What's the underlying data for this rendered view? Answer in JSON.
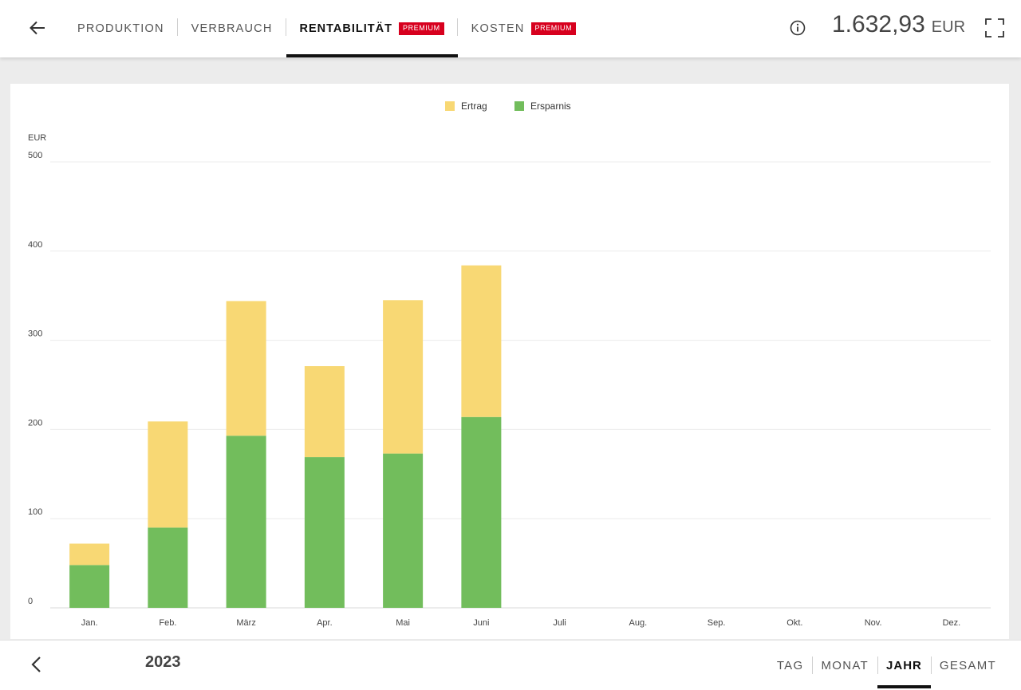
{
  "header": {
    "tabs": [
      {
        "label": "PRODUKTION",
        "active": false,
        "premium": false
      },
      {
        "label": "VERBRAUCH",
        "active": false,
        "premium": false
      },
      {
        "label": "RENTABILITÄT",
        "active": true,
        "premium": true
      },
      {
        "label": "KOSTEN",
        "active": false,
        "premium": true
      }
    ],
    "premium_badge": "PREMIUM",
    "total_value": "1.632,93",
    "total_unit": "EUR",
    "icons": {
      "back": "arrow-left-icon",
      "info": "info-icon",
      "fullscreen": "fullscreen-icon"
    }
  },
  "chart_data": {
    "type": "bar",
    "stacked": true,
    "categories": [
      "Jan.",
      "Feb.",
      "März",
      "Apr.",
      "Mai",
      "Juni",
      "Juli",
      "Aug.",
      "Sep.",
      "Okt.",
      "Nov.",
      "Dez."
    ],
    "series": [
      {
        "name": "Ersparnis",
        "color": "#72bd5c",
        "values": [
          48,
          90,
          193,
          169,
          173,
          214,
          null,
          null,
          null,
          null,
          null,
          null
        ]
      },
      {
        "name": "Ertrag",
        "color": "#f8d874",
        "values": [
          24,
          119,
          151,
          102,
          172,
          170,
          null,
          null,
          null,
          null,
          null,
          null
        ]
      }
    ],
    "legend_order": [
      "Ertrag",
      "Ersparnis"
    ],
    "legend_position": "top-center",
    "ylabel": "EUR",
    "ylim": [
      0,
      500
    ],
    "yticks": [
      0,
      100,
      200,
      300,
      400,
      500
    ],
    "grid": true
  },
  "footer": {
    "year": "2023",
    "periods": [
      {
        "label": "TAG",
        "active": false
      },
      {
        "label": "MONAT",
        "active": false
      },
      {
        "label": "JAHR",
        "active": true
      },
      {
        "label": "GESAMT",
        "active": false
      }
    ],
    "icons": {
      "prev": "chevron-left-icon"
    }
  }
}
